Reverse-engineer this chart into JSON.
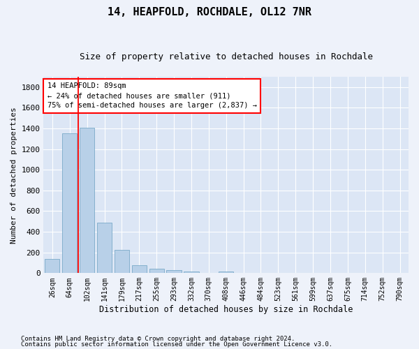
{
  "title": "14, HEAPFOLD, ROCHDALE, OL12 7NR",
  "subtitle": "Size of property relative to detached houses in Rochdale",
  "xlabel": "Distribution of detached houses by size in Rochdale",
  "ylabel": "Number of detached properties",
  "bar_color": "#b8d0e8",
  "bar_edge_color": "#7aaac8",
  "categories": [
    "26sqm",
    "64sqm",
    "102sqm",
    "141sqm",
    "179sqm",
    "217sqm",
    "255sqm",
    "293sqm",
    "332sqm",
    "370sqm",
    "408sqm",
    "446sqm",
    "484sqm",
    "523sqm",
    "561sqm",
    "599sqm",
    "637sqm",
    "675sqm",
    "714sqm",
    "752sqm",
    "790sqm"
  ],
  "values": [
    135,
    1350,
    1410,
    490,
    225,
    75,
    45,
    28,
    15,
    5,
    18,
    5,
    0,
    0,
    0,
    0,
    0,
    0,
    0,
    0,
    0
  ],
  "ylim": [
    0,
    1900
  ],
  "yticks": [
    0,
    200,
    400,
    600,
    800,
    1000,
    1200,
    1400,
    1600,
    1800
  ],
  "property_line_x": 1.5,
  "annotation_line1": "14 HEAPFOLD: 89sqm",
  "annotation_line2": "← 24% of detached houses are smaller (911)",
  "annotation_line3": "75% of semi-detached houses are larger (2,837) →",
  "footnote1": "Contains HM Land Registry data © Crown copyright and database right 2024.",
  "footnote2": "Contains public sector information licensed under the Open Government Licence v3.0.",
  "background_color": "#eef2fa",
  "plot_background_color": "#dce6f5"
}
